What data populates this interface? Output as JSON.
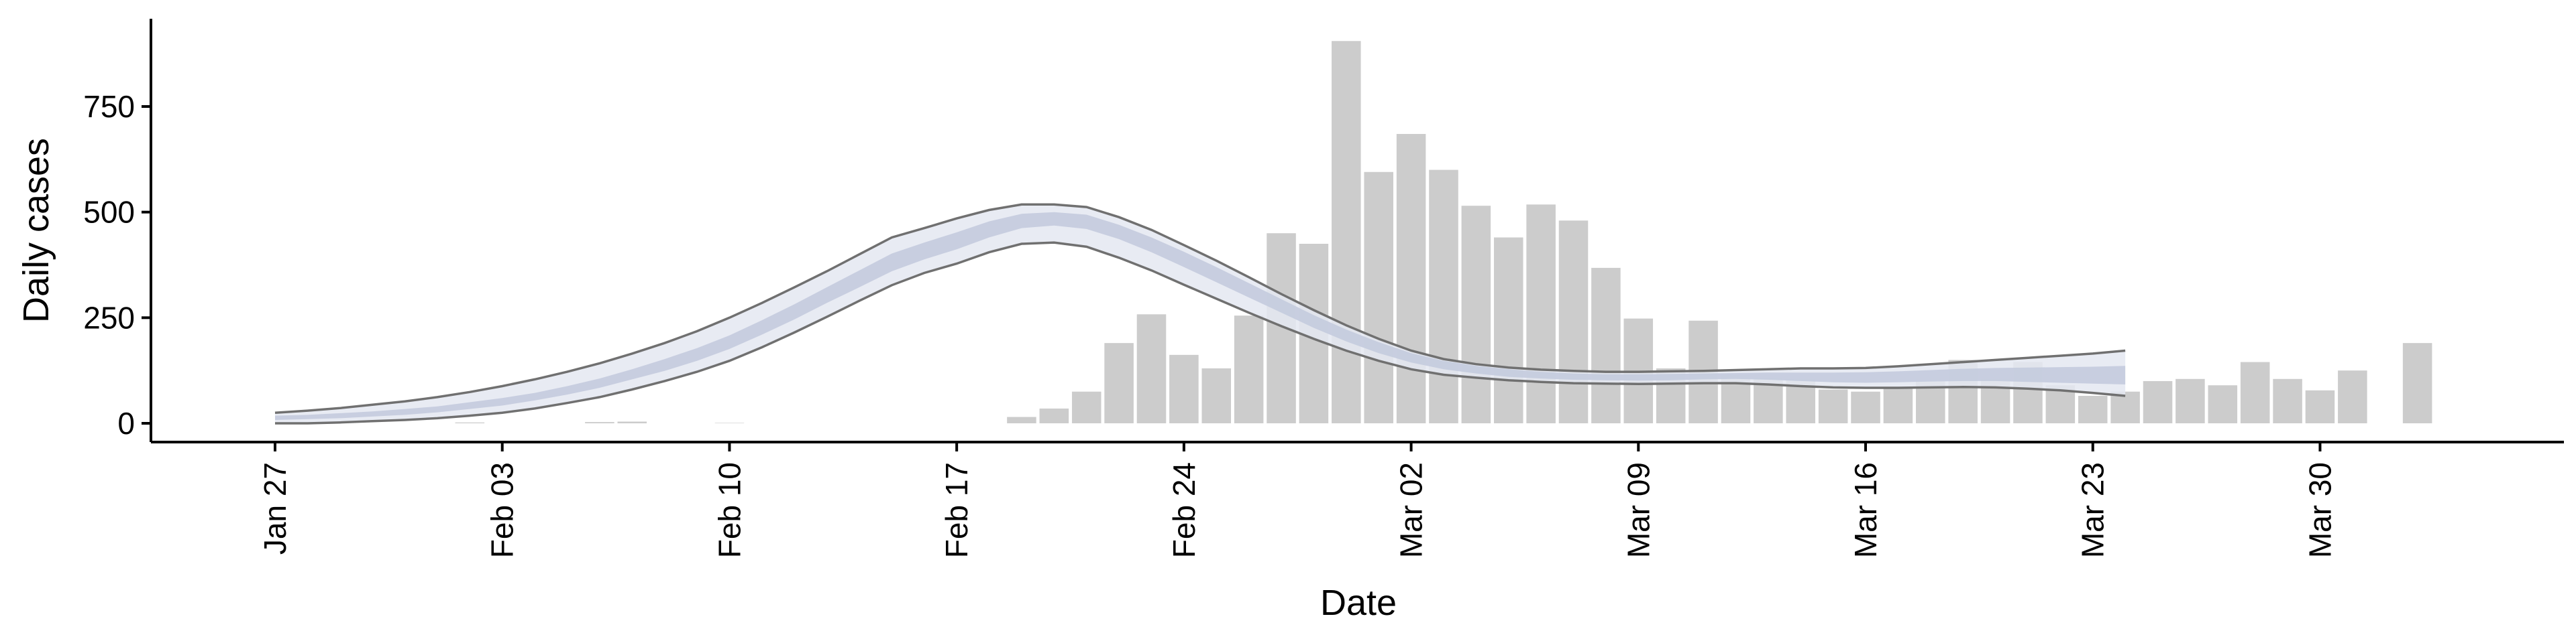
{
  "chart_data": {
    "type": "bar",
    "title": "",
    "xlabel": "Date",
    "ylabel": "Daily cases",
    "x_domain": [
      "2020-01-27",
      "2020-04-03"
    ],
    "ylim": [
      -40,
      950
    ],
    "y_ticks": [
      0,
      250,
      500,
      750
    ],
    "y_tick_labels": [
      "0",
      "250",
      "500",
      "750"
    ],
    "x_ticks": [
      "2020-01-27",
      "2020-02-03",
      "2020-02-10",
      "2020-02-17",
      "2020-02-24",
      "2020-03-02",
      "2020-03-09",
      "2020-03-16",
      "2020-03-23",
      "2020-03-30"
    ],
    "x_tick_labels": [
      "Jan 27",
      "Feb 03",
      "Feb 10",
      "Feb 17",
      "Feb 24",
      "Mar 02",
      "Mar 09",
      "Mar 16",
      "Mar 23",
      "Mar 30"
    ],
    "grid": false,
    "colors": {
      "bars": "#cccccc",
      "band_outer": "#e4e7f1",
      "band_inner": "#c4cbde",
      "band_edge": "#707070",
      "axis": "#000000"
    },
    "bars": {
      "dates": [
        "2020-02-02",
        "2020-02-03",
        "2020-02-04",
        "2020-02-05",
        "2020-02-06",
        "2020-02-07",
        "2020-02-08",
        "2020-02-09",
        "2020-02-10",
        "2020-02-11",
        "2020-02-12",
        "2020-02-13",
        "2020-02-14",
        "2020-02-15",
        "2020-02-16",
        "2020-02-17",
        "2020-02-18",
        "2020-02-19",
        "2020-02-20",
        "2020-02-21",
        "2020-02-22",
        "2020-02-23",
        "2020-02-24",
        "2020-02-25",
        "2020-02-26",
        "2020-02-27",
        "2020-02-28",
        "2020-02-29",
        "2020-03-01",
        "2020-03-02",
        "2020-03-03",
        "2020-03-04",
        "2020-03-05",
        "2020-03-06",
        "2020-03-07",
        "2020-03-08",
        "2020-03-09",
        "2020-03-10",
        "2020-03-11",
        "2020-03-12",
        "2020-03-13",
        "2020-03-14",
        "2020-03-15",
        "2020-03-16",
        "2020-03-17",
        "2020-03-18",
        "2020-03-19",
        "2020-03-20",
        "2020-03-21",
        "2020-03-22",
        "2020-03-23",
        "2020-03-24",
        "2020-03-25",
        "2020-03-26",
        "2020-03-27",
        "2020-03-28",
        "2020-03-29",
        "2020-03-30",
        "2020-03-31",
        "2020-04-01",
        "2020-04-02"
      ],
      "values": [
        2,
        0,
        0,
        0,
        3,
        4,
        0,
        0,
        1,
        0,
        0,
        0,
        0,
        0,
        0,
        0,
        0,
        15,
        35,
        75,
        190,
        258,
        162,
        130,
        255,
        450,
        425,
        905,
        595,
        685,
        600,
        515,
        440,
        518,
        480,
        368,
        248,
        130,
        243,
        115,
        108,
        105,
        80,
        75,
        85,
        100,
        150,
        105,
        145,
        90,
        65,
        75,
        100,
        105,
        90,
        145,
        105,
        78,
        125,
        0,
        190
      ]
    },
    "series": [
      {
        "dates": [
          "2020-01-27",
          "2020-01-28",
          "2020-01-29",
          "2020-01-30",
          "2020-01-31",
          "2020-02-01",
          "2020-02-02",
          "2020-02-03",
          "2020-02-04",
          "2020-02-05",
          "2020-02-06",
          "2020-02-07",
          "2020-02-08",
          "2020-02-09",
          "2020-02-10",
          "2020-02-11",
          "2020-02-12",
          "2020-02-13",
          "2020-02-14",
          "2020-02-15",
          "2020-02-16",
          "2020-02-17",
          "2020-02-18",
          "2020-02-19",
          "2020-02-20",
          "2020-02-21",
          "2020-02-22",
          "2020-02-23",
          "2020-02-24",
          "2020-02-25",
          "2020-02-26",
          "2020-02-27",
          "2020-02-28",
          "2020-02-29",
          "2020-03-01",
          "2020-03-02",
          "2020-03-03",
          "2020-03-04",
          "2020-03-05",
          "2020-03-06",
          "2020-03-07",
          "2020-03-08",
          "2020-03-09",
          "2020-03-10",
          "2020-03-11",
          "2020-03-12",
          "2020-03-13",
          "2020-03-14",
          "2020-03-15",
          "2020-03-16",
          "2020-03-17",
          "2020-03-18",
          "2020-03-19",
          "2020-03-20",
          "2020-03-21",
          "2020-03-22",
          "2020-03-23",
          "2020-03-24"
        ],
        "lower": [
          0,
          0,
          2,
          5,
          8,
          12,
          18,
          25,
          35,
          48,
          62,
          80,
          100,
          122,
          148,
          180,
          215,
          252,
          290,
          327,
          356,
          378,
          405,
          425,
          428,
          418,
          392,
          362,
          328,
          295,
          262,
          230,
          200,
          172,
          148,
          128,
          115,
          108,
          102,
          98,
          95,
          94,
          93,
          94,
          95,
          95,
          92,
          88,
          85,
          84,
          84,
          85,
          86,
          85,
          82,
          78,
          72,
          65
        ],
        "inner_lower": [
          8,
          10,
          12,
          16,
          20,
          26,
          34,
          42,
          54,
          68,
          84,
          104,
          124,
          148,
          176,
          210,
          246,
          285,
          322,
          360,
          388,
          412,
          440,
          462,
          468,
          460,
          436,
          405,
          370,
          334,
          298,
          262,
          226,
          194,
          166,
          144,
          128,
          118,
          110,
          106,
          103,
          102,
          101,
          102,
          104,
          105,
          103,
          100,
          97,
          96,
          97,
          99,
          100,
          100,
          98,
          96,
          94,
          92
        ],
        "inner_upper": [
          18,
          20,
          24,
          28,
          34,
          40,
          50,
          60,
          72,
          88,
          106,
          128,
          152,
          178,
          208,
          244,
          282,
          322,
          362,
          402,
          428,
          452,
          478,
          496,
          500,
          494,
          470,
          440,
          406,
          370,
          332,
          294,
          256,
          222,
          192,
          166,
          148,
          136,
          128,
          122,
          118,
          116,
          116,
          117,
          118,
          119,
          120,
          120,
          120,
          121,
          123,
          126,
          129,
          131,
          132,
          133,
          134,
          136
        ],
        "upper": [
          25,
          30,
          36,
          44,
          52,
          62,
          74,
          88,
          104,
          122,
          142,
          165,
          190,
          218,
          250,
          285,
          322,
          360,
          400,
          440,
          462,
          485,
          505,
          518,
          518,
          512,
          488,
          458,
          422,
          385,
          346,
          306,
          268,
          232,
          200,
          172,
          152,
          140,
          132,
          127,
          124,
          122,
          122,
          123,
          124,
          126,
          128,
          130,
          130,
          131,
          135,
          140,
          145,
          150,
          155,
          160,
          165,
          172
        ]
      }
    ]
  }
}
